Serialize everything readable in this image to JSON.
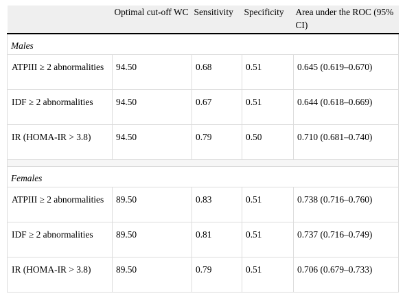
{
  "table": {
    "headers": [
      "",
      "Optimal cut-off WC",
      "Sensitivity",
      "Specificity",
      "Area under the ROC (95% CI)"
    ],
    "groups": [
      {
        "label": "Males",
        "rows": [
          [
            "ATPIII ≥ 2 abnormalities",
            "94.50",
            "0.68",
            "0.51",
            "0.645 (0.619–0.670)"
          ],
          [
            "IDF ≥ 2 abnormalities",
            "94.50",
            "0.67",
            "0.51",
            "0.644 (0.618–0.669)"
          ],
          [
            "IR (HOMA-IR > 3.8)",
            "94.50",
            "0.79",
            "0.50",
            "0.710 (0.681–0.740)"
          ]
        ]
      },
      {
        "label": "Females",
        "rows": [
          [
            "ATPIII ≥ 2 abnormalities",
            "89.50",
            "0.83",
            "0.51",
            "0.738 (0.716–0.760)"
          ],
          [
            "IDF ≥ 2 abnormalities",
            "89.50",
            "0.81",
            "0.51",
            "0.737 (0.716–0.749)"
          ],
          [
            "IR (HOMA-IR > 3.8)",
            "89.50",
            "0.79",
            "0.51",
            "0.706 (0.679–0.733)"
          ]
        ]
      }
    ]
  }
}
